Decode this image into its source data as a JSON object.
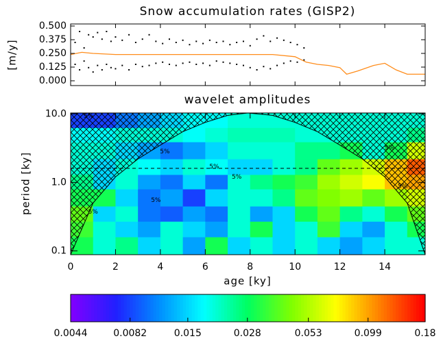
{
  "chart_data": [
    {
      "type": "scatter-line",
      "title": "Snow accumulation rates (GISP2)",
      "ylabel": "[m/y]",
      "xlim": [
        0,
        15.8
      ],
      "xticks": [
        0,
        2,
        4,
        6,
        8,
        10,
        12,
        14
      ],
      "ylim": [
        0,
        0.5
      ],
      "yticks": [
        {
          "value": 0,
          "label": "0.000"
        },
        {
          "value": 0.125,
          "label": "0.125"
        },
        {
          "value": 0.25,
          "label": "0.250"
        },
        {
          "value": 0.375,
          "label": "0.375"
        },
        {
          "value": 0.5,
          "label": "0.500"
        }
      ],
      "series": [
        {
          "kind": "points",
          "color": "#000000",
          "x": [
            0.2,
            0.4,
            0.6,
            0.8,
            1.0,
            1.2,
            1.4,
            1.6,
            1.8,
            2.0,
            2.3,
            2.6,
            2.9,
            3.2,
            3.5,
            3.8,
            4.1,
            4.4,
            4.7,
            5.0,
            5.3,
            5.6,
            5.9,
            6.2,
            6.5,
            6.8,
            7.1,
            7.4,
            7.7,
            8.0,
            8.3,
            8.6,
            8.9,
            9.2,
            9.5,
            9.8,
            10.1,
            10.4,
            0.2,
            0.4,
            0.6,
            0.8,
            1.0,
            1.2,
            1.4,
            1.6,
            1.8,
            2.0,
            2.3,
            2.6,
            2.9,
            3.2,
            3.5,
            3.8,
            4.1,
            4.4,
            4.7,
            5.0,
            5.3,
            5.6,
            5.9,
            6.2,
            6.5,
            6.8,
            7.1,
            7.4,
            7.7,
            8.0,
            8.3,
            8.6,
            8.9,
            9.2,
            9.5,
            9.8,
            10.1,
            10.4
          ],
          "values": [
            0.35,
            0.45,
            0.3,
            0.42,
            0.4,
            0.44,
            0.38,
            0.45,
            0.36,
            0.4,
            0.37,
            0.42,
            0.35,
            0.38,
            0.42,
            0.36,
            0.34,
            0.38,
            0.35,
            0.37,
            0.33,
            0.36,
            0.34,
            0.37,
            0.35,
            0.36,
            0.33,
            0.35,
            0.36,
            0.32,
            0.38,
            0.41,
            0.36,
            0.39,
            0.37,
            0.35,
            0.33,
            0.3,
            0.15,
            0.1,
            0.18,
            0.12,
            0.08,
            0.14,
            0.1,
            0.15,
            0.12,
            0.11,
            0.14,
            0.1,
            0.15,
            0.13,
            0.14,
            0.16,
            0.17,
            0.15,
            0.14,
            0.16,
            0.17,
            0.15,
            0.16,
            0.14,
            0.18,
            0.17,
            0.16,
            0.15,
            0.14,
            0.12,
            0.1,
            0.13,
            0.11,
            0.14,
            0.16,
            0.18,
            0.17,
            0.19
          ]
        },
        {
          "kind": "line",
          "color": "#ff8c1a",
          "x": [
            0,
            0.5,
            1,
            2,
            3,
            4,
            5,
            6,
            7,
            8,
            9,
            10,
            10.5,
            11,
            11.5,
            12,
            12.3,
            12.8,
            13.5,
            14,
            14.5,
            15,
            15.5,
            15.8
          ],
          "values": [
            0.24,
            0.26,
            0.25,
            0.24,
            0.24,
            0.24,
            0.24,
            0.24,
            0.24,
            0.24,
            0.24,
            0.22,
            0.17,
            0.15,
            0.14,
            0.12,
            0.06,
            0.09,
            0.14,
            0.16,
            0.1,
            0.06,
            0.06,
            0.06
          ]
        }
      ]
    },
    {
      "type": "heatmap",
      "title": "wavelet amplitudes",
      "xlabel": "age [ky]",
      "ylabel": "period [ky]",
      "xlim": [
        0,
        15.8
      ],
      "xticks": [
        0,
        2,
        4,
        6,
        8,
        10,
        12,
        14
      ],
      "log_y": true,
      "ylim": [
        0.088,
        10.3
      ],
      "yticks": [
        0.1,
        {
          "value": 1,
          "label": "1.0"
        },
        {
          "value": 10,
          "label": "10.0"
        }
      ],
      "x_bins": [
        0,
        1,
        2,
        3,
        4,
        5,
        6,
        7,
        8,
        9,
        10,
        11,
        12,
        13,
        14,
        15,
        16
      ],
      "period_bins": [
        0.088,
        0.16,
        0.27,
        0.45,
        0.8,
        1.3,
        2.2,
        3.9,
        6.3,
        10.3
      ],
      "z": [
        [
          0.03,
          0.02,
          0.025,
          0.015,
          0.02,
          0.012,
          0.03,
          0.015,
          0.02,
          0.015,
          0.02,
          0.015,
          0.012,
          0.015,
          0.02,
          0.02
        ],
        [
          0.035,
          0.02,
          0.015,
          0.012,
          0.02,
          0.015,
          0.012,
          0.02,
          0.03,
          0.015,
          0.02,
          0.035,
          0.015,
          0.012,
          0.02,
          0.03
        ],
        [
          0.04,
          0.015,
          0.02,
          0.01,
          0.009,
          0.012,
          0.01,
          0.02,
          0.012,
          0.015,
          0.03,
          0.04,
          0.025,
          0.02,
          0.03,
          0.04
        ],
        [
          0.03,
          0.03,
          0.015,
          0.01,
          0.012,
          0.008,
          0.015,
          0.02,
          0.02,
          0.025,
          0.04,
          0.045,
          0.05,
          0.04,
          0.05,
          0.06
        ],
        [
          0.025,
          0.015,
          0.02,
          0.012,
          0.01,
          0.015,
          0.01,
          0.02,
          0.025,
          0.03,
          0.035,
          0.05,
          0.06,
          0.07,
          0.09,
          0.1
        ],
        [
          0.02,
          0.015,
          0.02,
          0.018,
          0.015,
          0.02,
          0.018,
          0.015,
          0.015,
          0.02,
          0.025,
          0.04,
          0.05,
          0.06,
          0.09,
          0.13
        ],
        [
          0.02,
          0.02,
          0.015,
          0.012,
          0.01,
          0.012,
          0.015,
          0.02,
          0.02,
          0.02,
          0.025,
          0.025,
          0.03,
          0.02,
          0.03,
          0.06
        ],
        [
          0.018,
          0.018,
          0.02,
          0.02,
          0.02,
          0.018,
          0.02,
          0.022,
          0.022,
          0.022,
          0.02,
          0.02,
          0.02,
          0.02,
          0.02,
          0.025
        ],
        [
          0.008,
          0.008,
          0.01,
          0.012,
          0.015,
          0.018,
          0.018,
          0.02,
          0.02,
          0.02,
          0.02,
          0.02,
          0.02,
          0.02,
          0.02,
          0.02
        ]
      ],
      "colormap": [
        "#7f00ff",
        "#2020ff",
        "#0090ff",
        "#00ffff",
        "#00ff60",
        "#80ff00",
        "#ffff00",
        "#ff8000",
        "#ff0000"
      ],
      "clim": [
        0.0044,
        0.18
      ],
      "cticks": [
        0.0044,
        0.0082,
        0.015,
        0.028,
        0.053,
        0.099,
        0.18
      ],
      "coi_x": [
        0,
        1,
        2,
        3,
        4,
        5,
        6,
        7,
        7.9,
        9,
        10,
        11,
        12,
        13,
        14,
        15,
        15.8
      ],
      "coi_period": [
        0.088,
        0.5,
        1.2,
        2.2,
        3.5,
        5.5,
        7.5,
        9.5,
        10.3,
        9.5,
        7.5,
        5.5,
        3.5,
        2.2,
        1.2,
        0.5,
        0.088
      ],
      "ref_period": 1.6,
      "annotations": [
        {
          "text": "5%",
          "x": 0.8,
          "period": 9.3
        },
        {
          "text": "5%",
          "x": 4.2,
          "period": 2.8
        },
        {
          "text": "5%",
          "x": 6.4,
          "period": 1.7
        },
        {
          "text": "5%",
          "x": 7.4,
          "period": 1.2
        },
        {
          "text": "5%",
          "x": 3.8,
          "period": 0.55
        },
        {
          "text": "5%",
          "x": 1.0,
          "period": 0.37
        },
        {
          "text": "5%",
          "x": 14.2,
          "period": 3.2
        },
        {
          "text": "5%",
          "x": 14.8,
          "period": 0.88
        }
      ]
    }
  ]
}
